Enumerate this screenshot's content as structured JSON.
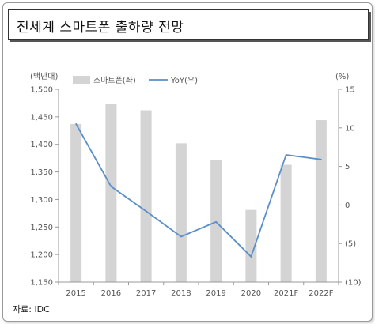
{
  "title": "전세계 스마트폰 출하량 전망",
  "source": "자료: IDC",
  "chart_data": {
    "type": "bar",
    "categories": [
      "2015",
      "2016",
      "2017",
      "2018",
      "2019",
      "2020",
      "2021F",
      "2022F"
    ],
    "series": [
      {
        "name": "스마트폰(좌)",
        "type": "bar",
        "axis": "left",
        "values": [
          1437,
          1473,
          1462,
          1402,
          1372,
          1281,
          1363,
          1444
        ]
      },
      {
        "name": "YoY(우)",
        "type": "line",
        "axis": "right",
        "values": [
          10.5,
          2.4,
          -0.8,
          -4.1,
          -2.2,
          -6.7,
          6.5,
          5.9
        ]
      }
    ],
    "left_axis": {
      "unit": "(백만대)",
      "min": 1150,
      "max": 1500,
      "step": 50,
      "tick_labels": [
        "1,150",
        "1,200",
        "1,250",
        "1,300",
        "1,350",
        "1,400",
        "1,450",
        "1,500"
      ]
    },
    "right_axis": {
      "unit": "(%)",
      "min": -10,
      "max": 15,
      "step": 5,
      "tick_labels": [
        "(10)",
        "(5)",
        "0",
        "5",
        "10",
        "15"
      ]
    },
    "grid": false,
    "legend": "top",
    "colors": {
      "bar": "#d4d4d4",
      "line": "#5b8fc9",
      "axis": "#999999"
    }
  }
}
